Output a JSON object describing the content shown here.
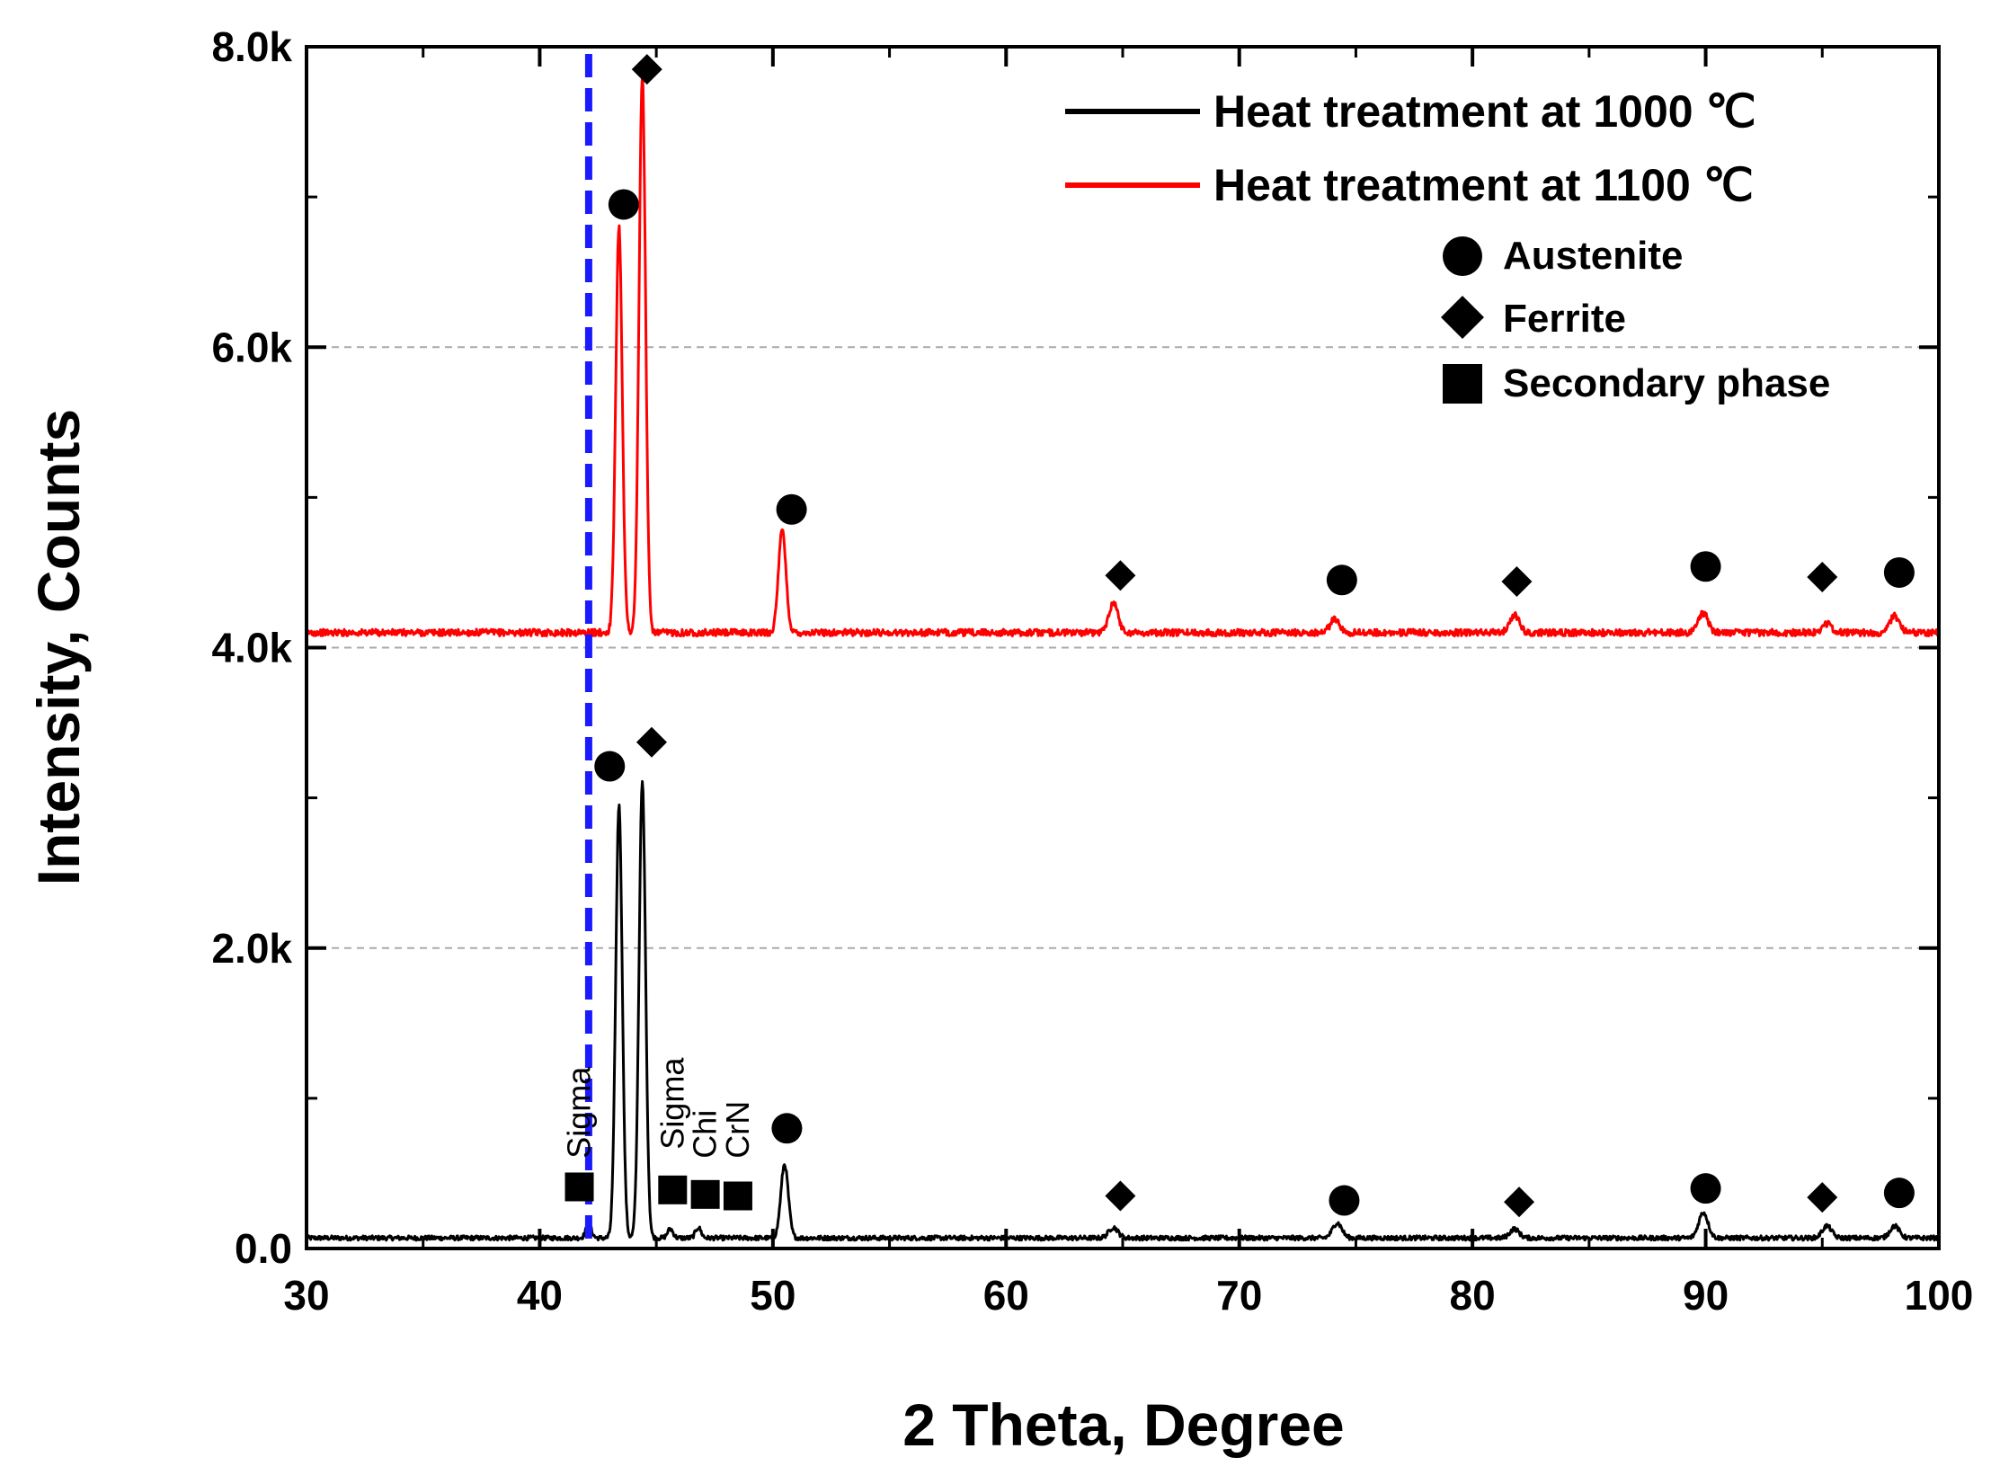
{
  "chart_data": {
    "type": "line",
    "xlabel": "2 Theta, Degree",
    "ylabel": "Intensity, Counts",
    "xlim": [
      30,
      100
    ],
    "ylim": [
      0,
      8000
    ],
    "x_ticks": [
      30,
      40,
      50,
      60,
      70,
      80,
      90,
      100
    ],
    "x_tick_labels": [
      "30",
      "40",
      "50",
      "60",
      "70",
      "80",
      "90",
      "100"
    ],
    "y_ticks": [
      0,
      2000,
      4000,
      6000,
      8000
    ],
    "y_tick_labels": [
      "0.0",
      "2.0k",
      "4.0k",
      "6.0k",
      "8.0k"
    ],
    "gridlines_y": [
      2000,
      4000,
      6000
    ],
    "reference_line_x": 42.1,
    "colors": {
      "series_1000": "#000000",
      "series_1100": "#ff0000",
      "reference": "#1a1aff",
      "marker": "#000000",
      "grid": "#aaaaaa"
    },
    "series": [
      {
        "name": "Heat treatment at 1000 ℃",
        "color": "#000000",
        "baseline": 70,
        "noise": 30,
        "peaks": [
          {
            "x": 42.1,
            "height": 90,
            "width": 0.12
          },
          {
            "x": 43.4,
            "height": 2880,
            "width": 0.14
          },
          {
            "x": 44.4,
            "height": 3030,
            "width": 0.14
          },
          {
            "x": 45.6,
            "height": 60,
            "width": 0.12
          },
          {
            "x": 46.8,
            "height": 70,
            "width": 0.12
          },
          {
            "x": 50.5,
            "height": 490,
            "width": 0.16
          },
          {
            "x": 64.6,
            "height": 70,
            "width": 0.2
          },
          {
            "x": 74.2,
            "height": 100,
            "width": 0.2
          },
          {
            "x": 81.8,
            "height": 60,
            "width": 0.2
          },
          {
            "x": 89.9,
            "height": 170,
            "width": 0.2
          },
          {
            "x": 95.2,
            "height": 80,
            "width": 0.2
          },
          {
            "x": 98.1,
            "height": 80,
            "width": 0.2
          }
        ]
      },
      {
        "name": "Heat treatment at 1100 ℃",
        "color": "#ff0000",
        "baseline": 4100,
        "noise": 45,
        "peaks": [
          {
            "x": 43.4,
            "height": 2700,
            "width": 0.14
          },
          {
            "x": 44.4,
            "height": 3700,
            "width": 0.14
          },
          {
            "x": 50.4,
            "height": 680,
            "width": 0.16
          },
          {
            "x": 64.6,
            "height": 200,
            "width": 0.2
          },
          {
            "x": 74.1,
            "height": 90,
            "width": 0.2
          },
          {
            "x": 81.8,
            "height": 120,
            "width": 0.2
          },
          {
            "x": 89.9,
            "height": 130,
            "width": 0.2
          },
          {
            "x": 95.2,
            "height": 60,
            "width": 0.2
          },
          {
            "x": 98.1,
            "height": 110,
            "width": 0.2
          }
        ]
      }
    ],
    "markers": [
      {
        "type": "diamond",
        "x": 44.6,
        "y": 7850
      },
      {
        "type": "circle",
        "x": 43.6,
        "y": 6950
      },
      {
        "type": "circle",
        "x": 50.8,
        "y": 4920
      },
      {
        "type": "diamond",
        "x": 64.9,
        "y": 4480
      },
      {
        "type": "circle",
        "x": 74.4,
        "y": 4450
      },
      {
        "type": "diamond",
        "x": 81.9,
        "y": 4440
      },
      {
        "type": "circle",
        "x": 90.0,
        "y": 4540
      },
      {
        "type": "diamond",
        "x": 95.0,
        "y": 4470
      },
      {
        "type": "circle",
        "x": 98.3,
        "y": 4500
      },
      {
        "type": "circle",
        "x": 43.0,
        "y": 3210
      },
      {
        "type": "diamond",
        "x": 44.8,
        "y": 3370
      },
      {
        "type": "circle",
        "x": 50.6,
        "y": 800
      },
      {
        "type": "diamond",
        "x": 64.9,
        "y": 350
      },
      {
        "type": "circle",
        "x": 74.5,
        "y": 320
      },
      {
        "type": "diamond",
        "x": 82.0,
        "y": 310
      },
      {
        "type": "circle",
        "x": 90.0,
        "y": 400
      },
      {
        "type": "diamond",
        "x": 95.0,
        "y": 340
      },
      {
        "type": "circle",
        "x": 98.3,
        "y": 370
      },
      {
        "type": "square",
        "x": 41.7,
        "y": 410
      },
      {
        "type": "square",
        "x": 45.7,
        "y": 390
      },
      {
        "type": "square",
        "x": 47.1,
        "y": 360
      },
      {
        "type": "square",
        "x": 48.5,
        "y": 350
      }
    ],
    "phase_labels": [
      {
        "text": "Sigma",
        "x": 41.7,
        "y": 600
      },
      {
        "text": "Sigma",
        "x": 45.7,
        "y": 660
      },
      {
        "text": "Chi",
        "x": 47.1,
        "y": 600
      },
      {
        "text": "CrN",
        "x": 48.5,
        "y": 600
      }
    ],
    "legend": {
      "position": "top-right",
      "lines": [
        {
          "label": "Heat treatment at 1000 ℃",
          "color": "#000000"
        },
        {
          "label": "Heat treatment at 1100 ℃",
          "color": "#ff0000"
        }
      ],
      "symbols": [
        {
          "label": "Austenite",
          "shape": "circle"
        },
        {
          "label": "Ferrite",
          "shape": "diamond"
        },
        {
          "label": "Secondary phase",
          "shape": "square"
        }
      ]
    }
  }
}
